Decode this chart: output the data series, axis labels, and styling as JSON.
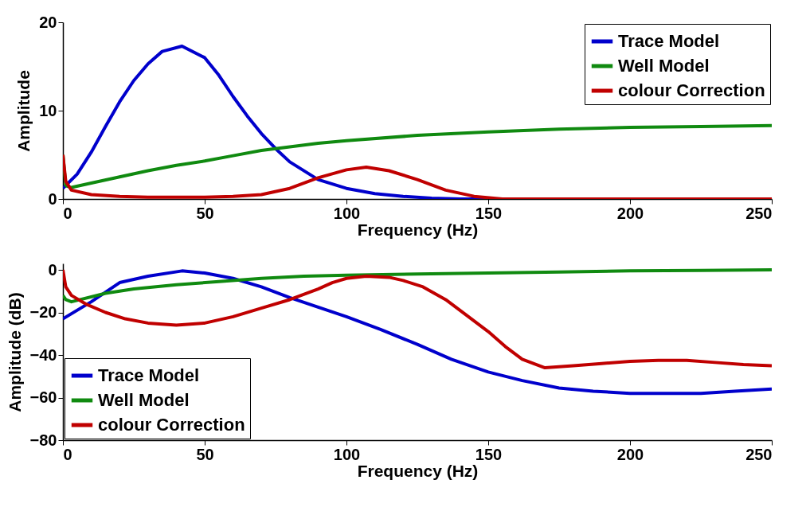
{
  "chart_data": [
    {
      "type": "line",
      "xlabel": "Frequency (Hz)",
      "ylabel": "Amplitude",
      "xlim": [
        0,
        250
      ],
      "ylim": [
        0,
        20
      ],
      "xticks": [
        0,
        50,
        100,
        150,
        200,
        250
      ],
      "yticks": [
        0,
        10,
        20
      ],
      "grid": false,
      "legend": "top right",
      "line_style": "solid",
      "marker": "none",
      "series": [
        {
          "name": "Trace Model",
          "color": "#0000cc",
          "x": [
            0,
            5,
            10,
            15,
            20,
            25,
            30,
            35,
            42,
            50,
            55,
            60,
            65,
            70,
            75,
            80,
            90,
            100,
            110,
            120,
            130,
            140,
            150,
            250
          ],
          "values": [
            1.2,
            2.8,
            5.3,
            8.2,
            11,
            13.4,
            15.3,
            16.7,
            17.3,
            16,
            14,
            11.6,
            9.4,
            7.4,
            5.7,
            4.2,
            2.2,
            1.2,
            0.6,
            0.3,
            0.1,
            0,
            0,
            0
          ]
        },
        {
          "name": "Well Model",
          "color": "#108a10",
          "x": [
            0,
            1,
            3,
            10,
            20,
            30,
            40,
            50,
            60,
            70,
            80,
            90,
            100,
            125,
            150,
            175,
            200,
            225,
            250
          ],
          "values": [
            5,
            1.5,
            1.3,
            1.8,
            2.5,
            3.2,
            3.8,
            4.3,
            4.9,
            5.5,
            5.9,
            6.3,
            6.6,
            7.2,
            7.6,
            7.9,
            8.1,
            8.2,
            8.3
          ]
        },
        {
          "name": "colour Correction",
          "color": "#c00000",
          "x": [
            0,
            1,
            3,
            10,
            20,
            30,
            40,
            50,
            60,
            70,
            80,
            90,
            100,
            107,
            115,
            125,
            135,
            145,
            155,
            250
          ],
          "values": [
            5,
            2,
            1,
            0.5,
            0.3,
            0.2,
            0.2,
            0.2,
            0.3,
            0.5,
            1.2,
            2.4,
            3.3,
            3.6,
            3.2,
            2.2,
            1,
            0.3,
            0,
            0
          ]
        }
      ]
    },
    {
      "type": "line",
      "xlabel": "Frequency (Hz)",
      "ylabel": "Amplitude (dB)",
      "xlim": [
        0,
        250
      ],
      "ylim": [
        -80,
        3
      ],
      "xticks": [
        0,
        50,
        100,
        150,
        200,
        250
      ],
      "yticks": [
        -80,
        -60,
        -40,
        -20,
        0
      ],
      "grid": false,
      "legend": "bottom left",
      "line_style": "solid",
      "marker": "none",
      "series": [
        {
          "name": "Trace Model",
          "color": "#0000cc",
          "x": [
            0,
            10,
            20,
            30,
            42,
            50,
            60,
            70,
            80,
            90,
            100,
            112,
            125,
            137,
            150,
            162,
            175,
            187,
            200,
            212,
            225,
            237,
            250
          ],
          "values": [
            -23,
            -15,
            -6,
            -3,
            -0.5,
            -1.5,
            -4,
            -8,
            -13,
            -17.5,
            -22,
            -28,
            -35,
            -42,
            -48,
            -52,
            -55.5,
            -57,
            -58,
            -58,
            -58,
            -57,
            -56
          ]
        },
        {
          "name": "Well Model",
          "color": "#108a10",
          "x": [
            0,
            1,
            3,
            15,
            25,
            40,
            55,
            70,
            85,
            100,
            125,
            150,
            175,
            200,
            225,
            250
          ],
          "values": [
            -12,
            -14,
            -15,
            -11,
            -9,
            -7,
            -5.5,
            -4,
            -3,
            -2.5,
            -2,
            -1.5,
            -1,
            -0.5,
            -0.3,
            0
          ]
        },
        {
          "name": "colour Correction",
          "color": "#c00000",
          "x": [
            0,
            1,
            3,
            8,
            15,
            22,
            30,
            40,
            50,
            60,
            70,
            80,
            90,
            95,
            100,
            107,
            115,
            120,
            127,
            135,
            142,
            150,
            156,
            162,
            170,
            180,
            190,
            200,
            210,
            220,
            230,
            240,
            250
          ],
          "values": [
            0,
            -8,
            -12,
            -16,
            -20,
            -23,
            -25,
            -26,
            -25,
            -22,
            -18,
            -14,
            -9,
            -6,
            -4,
            -3,
            -3.5,
            -5,
            -8,
            -14,
            -21,
            -29,
            -36,
            -42,
            -46,
            -45,
            -44,
            -43,
            -42.5,
            -42.5,
            -43.5,
            -44.5,
            -45
          ]
        }
      ]
    }
  ]
}
